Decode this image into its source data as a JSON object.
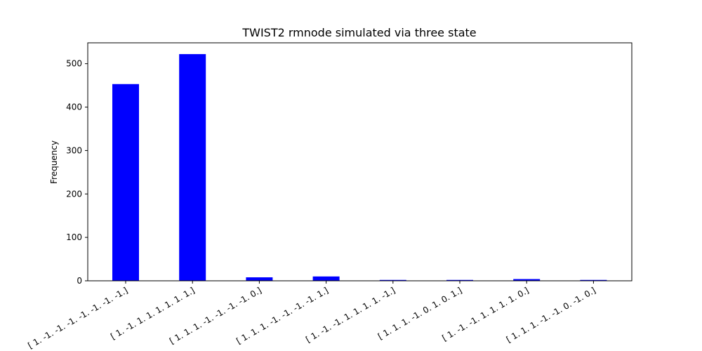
{
  "chart_data": {
    "type": "bar",
    "title": "TWIST2 rmnode simulated via three state",
    "xlabel": "",
    "ylabel": "Frequency",
    "ylim": [
      0,
      548
    ],
    "yticks": [
      0,
      100,
      200,
      300,
      400,
      500
    ],
    "grid": false,
    "bar_color": "#0000ff",
    "categories": [
      "[ 1. -1. -1. -1. -1. -1. -1. -1.]",
      "[ 1. -1. 1. 1. 1. 1. 1. 1.]",
      "[ 1. 1. 1. -1. -1. -1. -1. 0.]",
      "[ 1. 1. 1. -1. -1. -1. -1. 1.]",
      "[ 1. -1. -1. 1. 1. 1. 1. -1.]",
      "[ 1. 1. 1. -1. 0. 1. 0. 1.]",
      "[ 1. -1. -1. 1. 1. 1. 1. 0.]",
      "[ 1. 1. 1. -1. -1. 0. -1. 0.]"
    ],
    "values": [
      453,
      522,
      8,
      10,
      2,
      2,
      4,
      2
    ]
  }
}
